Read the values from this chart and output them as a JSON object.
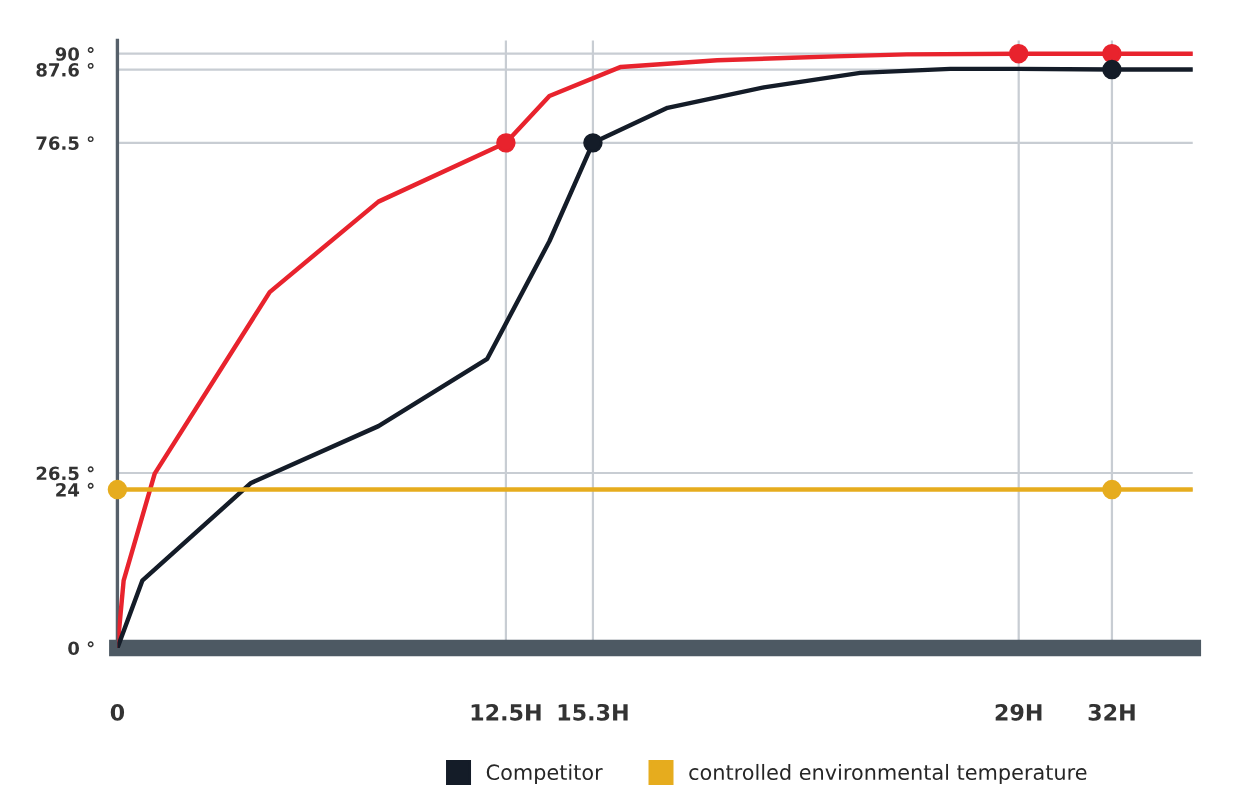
{
  "chart_data": {
    "type": "line",
    "xlim": [
      0,
      34.6
    ],
    "ylim": [
      0,
      92
    ],
    "xticks": [
      {
        "value": 0,
        "label": "0"
      },
      {
        "value": 12.5,
        "label": "12.5H"
      },
      {
        "value": 15.3,
        "label": "15.3H"
      },
      {
        "value": 29,
        "label": "29H"
      },
      {
        "value": 32,
        "label": "32H"
      }
    ],
    "yticks": [
      {
        "value": 0,
        "label": "0 °"
      },
      {
        "value": 24,
        "label": "24 °"
      },
      {
        "value": 26.5,
        "label": "26.5 °"
      },
      {
        "value": 76.5,
        "label": "76.5 °"
      },
      {
        "value": 87.6,
        "label": "87.6 °"
      },
      {
        "value": 90,
        "label": "90 °"
      }
    ],
    "grid": true,
    "legend": "bottom",
    "marker": "none",
    "line_style": "solid",
    "series": [
      {
        "color": "#e8232d",
        "x": [
          0,
          0.2,
          1.2,
          4.9,
          8.4,
          12.5,
          13.9,
          16.2,
          19.3,
          21.7,
          23.1,
          25.4,
          29,
          32,
          34.6
        ],
        "values": [
          0,
          10.2,
          26.4,
          53.9,
          67.6,
          76.5,
          83.6,
          88.0,
          89.0,
          89.4,
          89.6,
          89.9,
          90,
          90,
          90
        ]
      },
      {
        "name": "Competitor",
        "color": "#141c28",
        "x": [
          0,
          0.8,
          4.3,
          8.4,
          11.9,
          13.9,
          15.3,
          17.7,
          20.8,
          23.9,
          26.8,
          29,
          32,
          34.6
        ],
        "values": [
          0,
          10.2,
          25.0,
          33.6,
          43.8,
          61.6,
          76.5,
          81.8,
          84.9,
          87.1,
          87.7,
          87.7,
          87.6,
          87.6
        ]
      },
      {
        "name": "controlled environmental temperature",
        "color": "#e6ac1e",
        "x": [
          0,
          34.6
        ],
        "values": [
          24,
          24
        ]
      },
      {
        "type": "scatter",
        "marker": "circle",
        "color": "#e8232d",
        "x": [
          12.5,
          29,
          32
        ],
        "values": [
          76.5,
          90,
          90
        ]
      },
      {
        "type": "scatter",
        "marker": "circle",
        "color": "#141c28",
        "x": [
          15.3,
          32
        ],
        "values": [
          76.5,
          87.6
        ]
      },
      {
        "type": "scatter",
        "marker": "circle",
        "color": "#e6ac1e",
        "x": [
          0,
          32
        ],
        "values": [
          24,
          24
        ]
      }
    ]
  }
}
